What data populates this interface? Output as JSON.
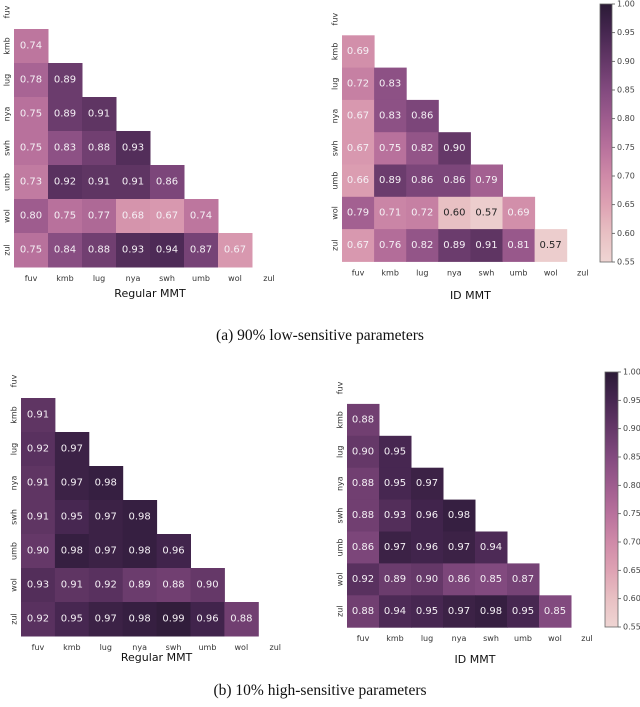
{
  "chart_data": [
    {
      "type": "heatmap",
      "panel": "a",
      "title": "Regular MMT",
      "xlabel": "Regular MMT",
      "ylabel": "",
      "x_tick_labels": [
        "fuv",
        "kmb",
        "lug",
        "nya",
        "swh",
        "umb",
        "wol",
        "zul"
      ],
      "y_tick_labels": [
        "fuv",
        "kmb",
        "lug",
        "nya",
        "swh",
        "umb",
        "wol",
        "zul"
      ],
      "mask": "upper-triangle-including-diagonal",
      "values": [
        [],
        [
          0.74
        ],
        [
          0.78,
          0.89
        ],
        [
          0.75,
          0.89,
          0.91
        ],
        [
          0.75,
          0.83,
          0.88,
          0.93
        ],
        [
          0.73,
          0.92,
          0.91,
          0.91,
          0.86
        ],
        [
          0.8,
          0.75,
          0.77,
          0.68,
          0.67,
          0.74
        ],
        [
          0.75,
          0.84,
          0.88,
          0.93,
          0.94,
          0.87,
          0.67
        ]
      ],
      "vmin": 0.55,
      "vmax": 1.0
    },
    {
      "type": "heatmap",
      "panel": "a",
      "title": "ID MMT",
      "xlabel": "ID MMT",
      "ylabel": "",
      "x_tick_labels": [
        "fuv",
        "kmb",
        "lug",
        "nya",
        "swh",
        "umb",
        "wol",
        "zul"
      ],
      "y_tick_labels": [
        "fuv",
        "kmb",
        "lug",
        "nya",
        "swh",
        "umb",
        "wol",
        "zul"
      ],
      "mask": "upper-triangle-including-diagonal",
      "values": [
        [],
        [
          0.69
        ],
        [
          0.72,
          0.83
        ],
        [
          0.67,
          0.83,
          0.86
        ],
        [
          0.67,
          0.75,
          0.82,
          0.9
        ],
        [
          0.66,
          0.89,
          0.86,
          0.86,
          0.79
        ],
        [
          0.79,
          0.71,
          0.72,
          0.6,
          0.57,
          0.69
        ],
        [
          0.67,
          0.76,
          0.82,
          0.89,
          0.91,
          0.81,
          0.57
        ]
      ],
      "vmin": 0.55,
      "vmax": 1.0,
      "colorbar": {
        "ticks": [
          "1.00",
          "0.95",
          "0.90",
          "0.85",
          "0.80",
          "0.75",
          "0.70",
          "0.65",
          "0.60",
          "0.55"
        ],
        "range": [
          0.55,
          1.0
        ]
      }
    },
    {
      "type": "heatmap",
      "panel": "b",
      "title": "Regular MMT",
      "xlabel": "Regular MMT",
      "ylabel": "",
      "x_tick_labels": [
        "fuv",
        "kmb",
        "lug",
        "nya",
        "swh",
        "umb",
        "wol",
        "zul"
      ],
      "y_tick_labels": [
        "fuv",
        "kmb",
        "lug",
        "nya",
        "swh",
        "umb",
        "wol",
        "zul"
      ],
      "mask": "upper-triangle-including-diagonal",
      "values": [
        [],
        [
          0.91
        ],
        [
          0.92,
          0.97
        ],
        [
          0.91,
          0.97,
          0.98
        ],
        [
          0.91,
          0.95,
          0.97,
          0.98
        ],
        [
          0.9,
          0.98,
          0.97,
          0.98,
          0.96
        ],
        [
          0.93,
          0.91,
          0.92,
          0.89,
          0.88,
          0.9
        ],
        [
          0.92,
          0.95,
          0.97,
          0.98,
          0.99,
          0.96,
          0.88
        ]
      ],
      "vmin": 0.55,
      "vmax": 1.0
    },
    {
      "type": "heatmap",
      "panel": "b",
      "title": "ID MMT",
      "xlabel": "ID MMT",
      "ylabel": "",
      "x_tick_labels": [
        "fuv",
        "kmb",
        "lug",
        "nya",
        "swh",
        "umb",
        "wol",
        "zul"
      ],
      "y_tick_labels": [
        "fuv",
        "kmb",
        "lug",
        "nya",
        "swh",
        "umb",
        "wol",
        "zul"
      ],
      "mask": "upper-triangle-including-diagonal",
      "values": [
        [],
        [
          0.88
        ],
        [
          0.9,
          0.95
        ],
        [
          0.88,
          0.95,
          0.97
        ],
        [
          0.88,
          0.93,
          0.96,
          0.98
        ],
        [
          0.86,
          0.97,
          0.96,
          0.97,
          0.94
        ],
        [
          0.92,
          0.89,
          0.9,
          0.86,
          0.85,
          0.87
        ],
        [
          0.88,
          0.94,
          0.95,
          0.97,
          0.98,
          0.95,
          0.85
        ]
      ],
      "vmin": 0.55,
      "vmax": 1.0,
      "colorbar": {
        "ticks": [
          "1.00",
          "0.95",
          "0.90",
          "0.85",
          "0.80",
          "0.75",
          "0.70",
          "0.65",
          "0.60",
          "0.55"
        ],
        "range": [
          0.55,
          1.0
        ]
      }
    }
  ],
  "captions": {
    "a": "(a) 90% low-sensitive parameters",
    "b": "(b) 10% high-sensitive parameters"
  },
  "colormap": {
    "stops": [
      {
        "v": 0.55,
        "color": "#efd5d3"
      },
      {
        "v": 0.6,
        "color": "#e8c0c3"
      },
      {
        "v": 0.65,
        "color": "#dea2b3"
      },
      {
        "v": 0.7,
        "color": "#cf8aa8"
      },
      {
        "v": 0.75,
        "color": "#b8719c"
      },
      {
        "v": 0.8,
        "color": "#9e5c8e"
      },
      {
        "v": 0.85,
        "color": "#824a7f"
      },
      {
        "v": 0.9,
        "color": "#653868"
      },
      {
        "v": 0.95,
        "color": "#472751"
      },
      {
        "v": 1.0,
        "color": "#2b1a36"
      }
    ],
    "dark_text_below": 0.61
  }
}
